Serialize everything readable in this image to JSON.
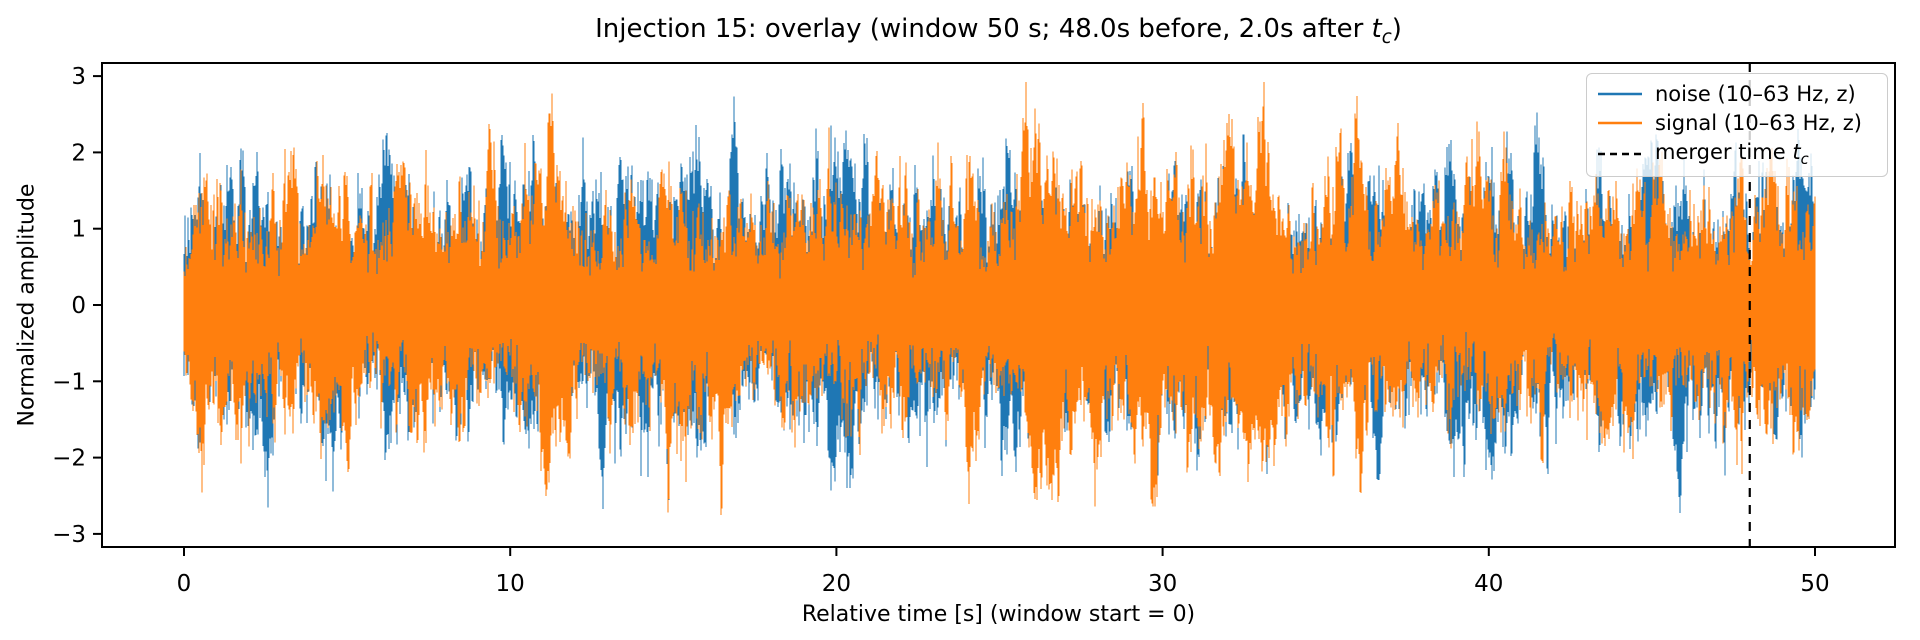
{
  "chart_data": {
    "type": "line",
    "title_prefix": "Injection 15: overlay (window 50 s; 48.0s before, 2.0s after ",
    "title_var": "t",
    "title_var_sub": "c",
    "title_suffix": ")",
    "xlabel": "Relative time [s] (window start = 0)",
    "ylabel": "Normalized amplitude",
    "window_s": 50,
    "before_s": 48.0,
    "after_s": 2.0,
    "xticks": [
      0,
      10,
      20,
      30,
      40,
      50
    ],
    "xtick_labels": [
      "0",
      "10",
      "20",
      "30",
      "40",
      "50"
    ],
    "yticks": [
      3,
      2,
      1,
      0,
      -1,
      -2,
      -3
    ],
    "ytick_labels": [
      "3",
      "2",
      "1",
      "0",
      "−1",
      "−2",
      "−3"
    ],
    "xlim_s": [
      -2.5,
      52.5
    ],
    "ylim": [
      -3.17,
      3.17
    ],
    "grid": false,
    "legend_position": "upper right",
    "series": [
      {
        "name": "noise (10–63 Hz, z)",
        "color": "#1f77b4",
        "line_style": "solid",
        "description": "z-scored band-passed (10–63 Hz) noise trace; dense oscillations spanning roughly ±0.5 to ±2.9",
        "peak_abs": 2.9,
        "render_seed": 1715
      },
      {
        "name": "signal (10–63 Hz, z)",
        "color": "#ff7f0e",
        "line_style": "solid",
        "description": "z-scored band-passed (10–63 Hz) signal trace drawn over the noise; dense oscillations spanning roughly ±0.5 to ±2.9",
        "peak_abs": 2.9,
        "render_seed": 9042
      }
    ],
    "marker_line": {
      "label_prefix": "merger time ",
      "label_var": "t",
      "label_var_sub": "c",
      "x_s": 48.0,
      "color": "#000000",
      "line_style": "dashed"
    }
  },
  "colors": {
    "background": "#ffffff",
    "axes": "#000000",
    "legend_border": "#cccccc"
  }
}
